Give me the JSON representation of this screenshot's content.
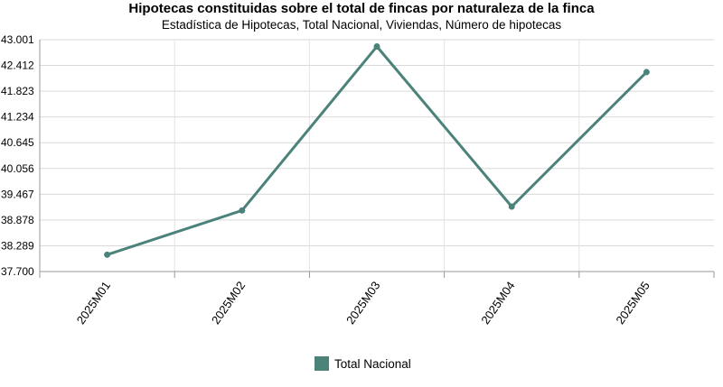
{
  "chart_data": {
    "type": "line",
    "title": "Hipotecas constituidas sobre el total de fincas por naturaleza de la finca",
    "subtitle": "Estadística de Hipotecas, Total Nacional, Viviendas, Número de hipotecas",
    "categories": [
      "2025M01",
      "2025M02",
      "2025M03",
      "2025M04",
      "2025M05"
    ],
    "series": [
      {
        "name": "Total Nacional",
        "values": [
          38085,
          39096,
          42846,
          39185,
          42260
        ],
        "color": "#4b8279"
      }
    ],
    "yticks": [
      "37.700",
      "38.289",
      "38.878",
      "39.467",
      "40.056",
      "40.645",
      "41.234",
      "41.823",
      "42.412",
      "43.001"
    ],
    "ylim": [
      37700,
      43001
    ],
    "grid": true,
    "legend_position": "bottom"
  }
}
